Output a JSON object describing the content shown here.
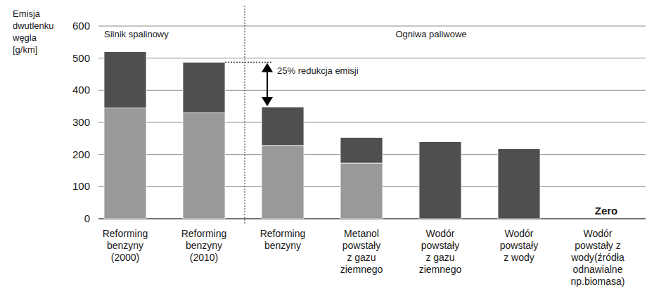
{
  "chart_data": {
    "type": "bar",
    "stacked": true,
    "grid": true,
    "y_label": "Emisja\ndwutlenku\nwęgla\n[g/km]",
    "categories": [
      "Reforming\nbenzyny\n(2000)",
      "Reforming\nbenzyny\n(2010)",
      "Reforming\nbenzyny",
      "Metanol\npowstały\nz gazu\nziemnego",
      "Wodór\npowstały\nz gazu\nziemnego",
      "Wodór\npowstały\nz wody",
      "Wodór\npowstały z\nwody(źródła\nodnawialne\nnp.biomasa)"
    ],
    "series": [
      {
        "color": "#999999",
        "values": [
          345,
          330,
          228,
          173,
          0,
          0,
          0
        ]
      },
      {
        "color": "#4f4f4f",
        "values": [
          175,
          157,
          120,
          80,
          240,
          218,
          0
        ]
      }
    ],
    "ylim": [
      0,
      600
    ],
    "yticks": [
      0,
      100,
      200,
      300,
      400,
      500,
      600
    ],
    "annotations": [
      "Silnik spalinowy",
      "Ogniwa paliwowe",
      "25% redukcja emisji",
      "Zero"
    ]
  }
}
